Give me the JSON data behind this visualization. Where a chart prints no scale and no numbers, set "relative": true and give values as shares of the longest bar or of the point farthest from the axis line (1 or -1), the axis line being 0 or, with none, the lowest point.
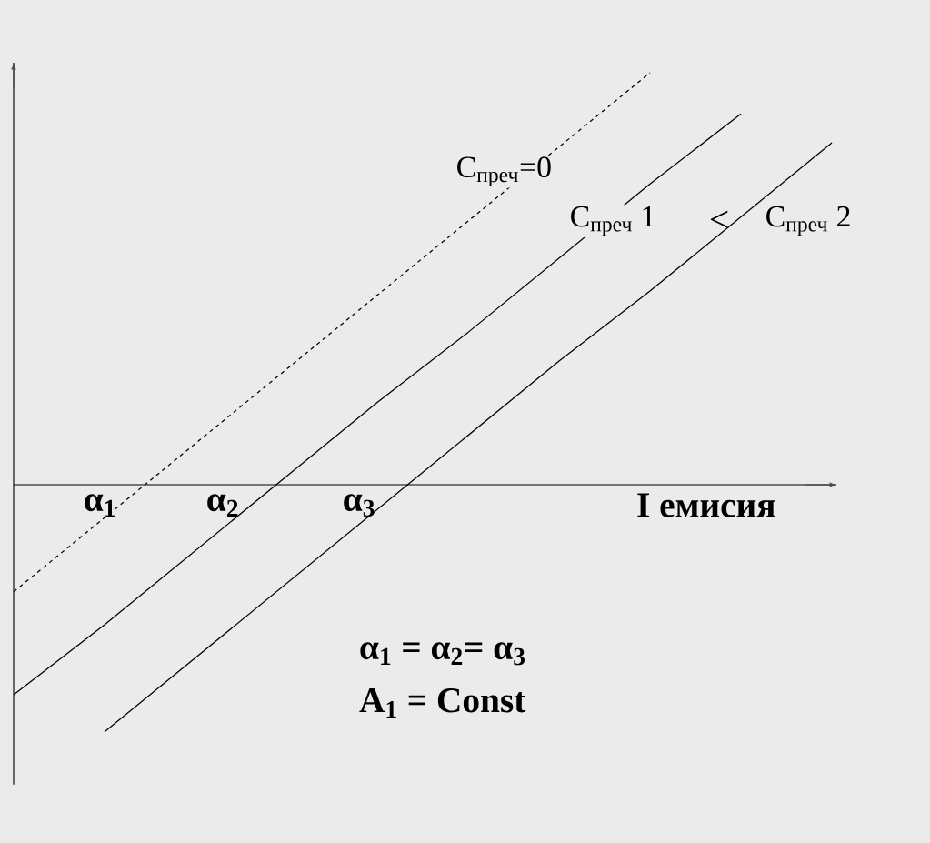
{
  "chart_data": {
    "type": "line",
    "relative": true,
    "categories": [
      null,
      null,
      null,
      null,
      null,
      null,
      null,
      null,
      null,
      null
    ],
    "series": [
      {
        "name": "C$_{преч}$=0",
        "color": "#000000",
        "line_style": "dashed",
        "values": [
          -0.26,
          -0.08,
          0.1,
          0.28,
          0.46,
          0.64,
          0.82,
          1.0,
          null,
          null
        ]
      },
      {
        "name": "C$_{преч}$ 1",
        "color": "#000000",
        "line_style": "solid",
        "values": [
          -0.51,
          -0.34,
          -0.16,
          0.02,
          0.2,
          0.37,
          0.55,
          0.73,
          0.9,
          null
        ]
      },
      {
        "name": "C$_{преч}$ 2",
        "color": "#000000",
        "line_style": "solid",
        "values": [
          null,
          -0.6,
          -0.42,
          -0.24,
          -0.06,
          0.12,
          0.3,
          0.47,
          0.65,
          0.83
        ]
      }
    ],
    "annotations": [
      "<",
      "α$_{1}$",
      "α$_{2}$",
      "α$_{3}$",
      "I емисия",
      "α$_{1}$ = α$_{2}$= α$_{3}$",
      "A$_{1}$ = Const"
    ]
  }
}
